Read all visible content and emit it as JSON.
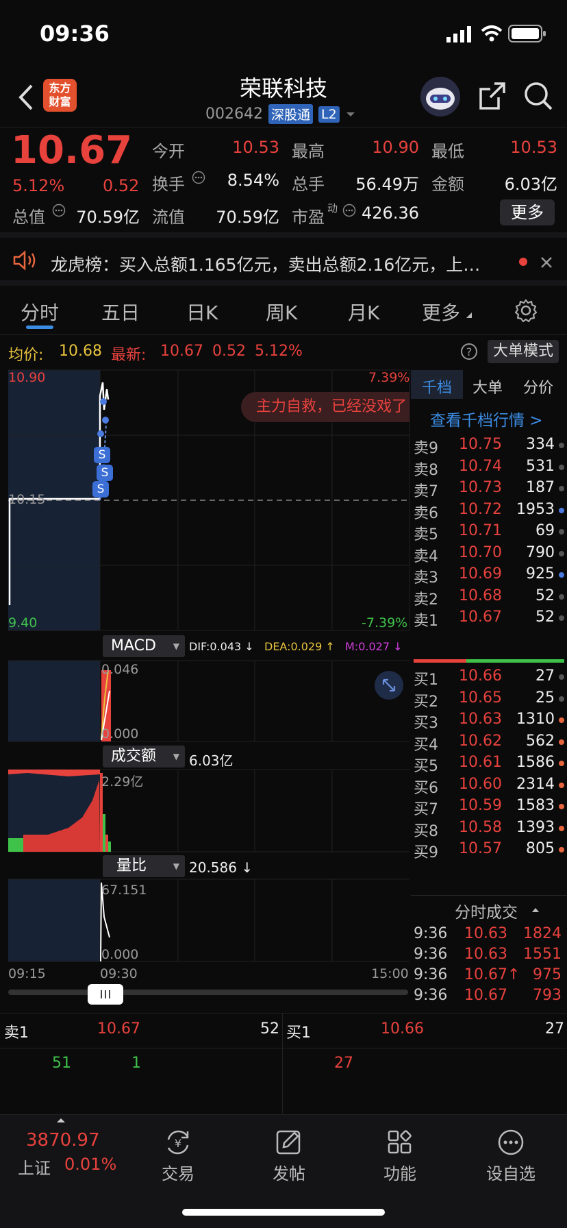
{
  "status": {
    "time": "09:36"
  },
  "header": {
    "title": "荣联科技",
    "code": "002642",
    "tag1": "深股通",
    "tag2": "L2",
    "logo_line1": "东方",
    "logo_line2": "财富"
  },
  "quote": {
    "price": "10.67",
    "pct": "5.12%",
    "chg": "0.52",
    "open_label": "今开",
    "open": "10.53",
    "high_label": "最高",
    "high": "10.90",
    "low_label": "最低",
    "low": "10.53",
    "turnover_label": "换手",
    "turnover": "8.54%",
    "vol_label": "总手",
    "vol": "56.49万",
    "amount_label": "金额",
    "amount": "6.03亿",
    "mcap_label": "总值",
    "mcap": "70.59亿",
    "float_label": "流值",
    "float": "70.59亿",
    "pe_label": "市盈",
    "pe_sup": "动",
    "pe": "426.36",
    "more": "更多"
  },
  "notice": {
    "text": "龙虎榜：买入总额1.165亿元，卖出总额2.16亿元，上…"
  },
  "tabs": [
    "分时",
    "五日",
    "日K",
    "周K",
    "月K",
    "更多"
  ],
  "info": {
    "avg_label": "均价:",
    "avg": "10.68",
    "last_label": "最新:",
    "last": "10.67",
    "chg": "0.52",
    "pct": "5.12%",
    "mode": "大单模式"
  },
  "chart": {
    "top_price": "10.90",
    "mid_price": "10.15",
    "bottom_price": "9.40",
    "top_pct": "7.39%",
    "bottom_pct": "-7.39%",
    "banner": "主力自救，已经没戏了",
    "macd_label": "MACD",
    "dif": "DIF:0.043 ↓",
    "dea": "DEA:0.029 ↑",
    "m": "M:0.027 ↓",
    "macd_top": "0.046",
    "macd_bottom": "0.000",
    "amt_label": "成交额",
    "amt_val": "6.03亿",
    "amt_top": "2.29亿",
    "lb_label": "量比",
    "lb_val": "20.586 ↓",
    "lb_top": "67.151",
    "lb_bottom": "0.000",
    "t_start": "09:15",
    "t_mid": "09:30",
    "t_end": "15:00",
    "s_marker": "S"
  },
  "book": {
    "tabs": [
      "千档",
      "大单",
      "分价"
    ],
    "link": "查看千档行情 >",
    "asks": [
      [
        "卖9",
        "10.75",
        "334"
      ],
      [
        "卖8",
        "10.74",
        "531"
      ],
      [
        "卖7",
        "10.73",
        "187"
      ],
      [
        "卖6",
        "10.72",
        "1953"
      ],
      [
        "卖5",
        "10.71",
        "69"
      ],
      [
        "卖4",
        "10.70",
        "790"
      ],
      [
        "卖3",
        "10.69",
        "925"
      ],
      [
        "卖2",
        "10.68",
        "52"
      ],
      [
        "卖1",
        "10.67",
        "52"
      ]
    ],
    "bids": [
      [
        "买1",
        "10.66",
        "27"
      ],
      [
        "买2",
        "10.65",
        "25"
      ],
      [
        "买3",
        "10.63",
        "1310"
      ],
      [
        "买4",
        "10.62",
        "562"
      ],
      [
        "买5",
        "10.61",
        "1586"
      ],
      [
        "买6",
        "10.60",
        "2314"
      ],
      [
        "买7",
        "10.59",
        "1583"
      ],
      [
        "买8",
        "10.58",
        "1393"
      ],
      [
        "买9",
        "10.57",
        "805"
      ]
    ],
    "ticks_title": "分时成交",
    "ticks": [
      [
        "9:36",
        "10.63",
        "1824"
      ],
      [
        "9:36",
        "10.63",
        "1551"
      ],
      [
        "9:36",
        "10.67↑",
        "975"
      ],
      [
        "9:36",
        "10.67",
        "793"
      ]
    ]
  },
  "bottom": {
    "ask_label": "卖1",
    "ask_price": "10.67",
    "ask_vol": "52",
    "bid_label": "买1",
    "bid_price": "10.66",
    "bid_vol": "27",
    "q1": "51",
    "q2": "1",
    "q3": "27"
  },
  "nav": {
    "index_val": "3870.97",
    "index_name": "上证",
    "index_pct": "0.01%",
    "items": [
      "交易",
      "发帖",
      "功能",
      "设自选"
    ]
  }
}
